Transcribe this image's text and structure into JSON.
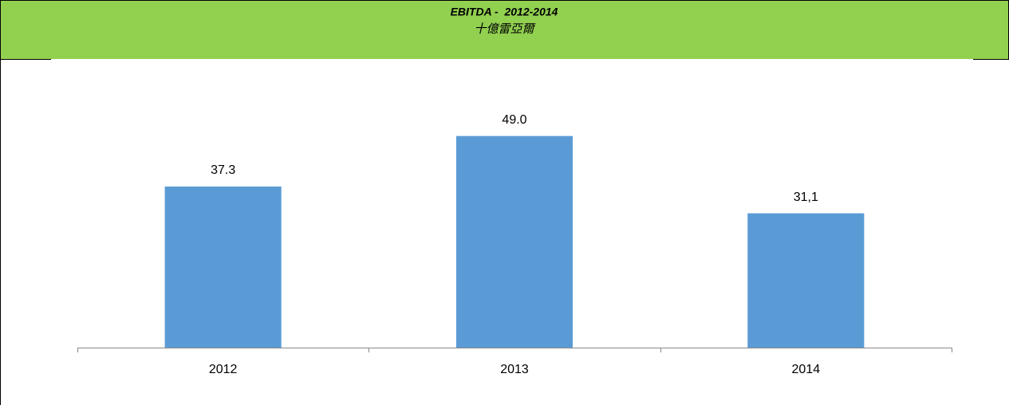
{
  "chart_data": {
    "type": "bar",
    "title": "EBITDA -  2012-2014",
    "subtitle": "十億雷亞爾",
    "categories": [
      "2012",
      "2013",
      "2014"
    ],
    "values": [
      37.3,
      49.0,
      31.1
    ],
    "value_labels": [
      "37.3",
      "49.0",
      "31,1"
    ],
    "color": "#5b9bd5",
    "ylim": [
      0,
      60
    ]
  }
}
